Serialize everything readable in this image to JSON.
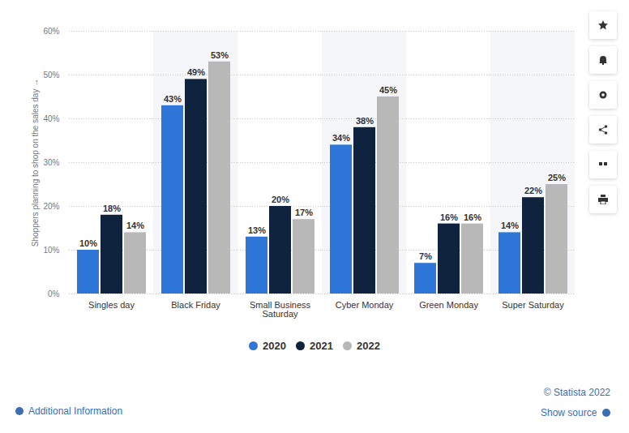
{
  "chart_data": {
    "type": "bar",
    "categories": [
      "Singles day",
      "Black Friday",
      "Small Business Saturday",
      "Cyber Monday",
      "Green Monday",
      "Super Saturday"
    ],
    "series": [
      {
        "name": "2020",
        "color": "#2e77d8",
        "values": [
          10,
          43,
          13,
          34,
          7,
          14
        ],
        "value_labels": [
          "10%",
          "43%",
          "13%",
          "34%",
          "7%",
          "14%"
        ]
      },
      {
        "name": "2021",
        "color": "#0f233f",
        "values": [
          18,
          49,
          20,
          38,
          16,
          22
        ],
        "value_labels": [
          "18%",
          "49%",
          "20%",
          "38%",
          "16%",
          "22%"
        ]
      },
      {
        "name": "2022",
        "color": "#b8b8b8",
        "values": [
          14,
          53,
          17,
          45,
          16,
          25
        ],
        "value_labels": [
          "14%",
          "53%",
          "17%",
          "45%",
          "16%",
          "25%"
        ]
      }
    ],
    "y_label": "Shoppers planning to shop on the sales day",
    "ylim": [
      0,
      60
    ],
    "yticks": [
      {
        "value": 0,
        "label": "0%"
      },
      {
        "value": 10,
        "label": "10%"
      },
      {
        "value": 20,
        "label": "20%"
      },
      {
        "value": 30,
        "label": "30%"
      },
      {
        "value": 40,
        "label": "40%"
      },
      {
        "value": 50,
        "label": "50%"
      },
      {
        "value": 60,
        "label": "60%"
      }
    ],
    "grid": true,
    "legend": "bottom",
    "data_labels": true
  },
  "footer": {
    "copyright": "© Statista 2022",
    "additional_information": "Additional Information",
    "show_source": "Show source"
  }
}
